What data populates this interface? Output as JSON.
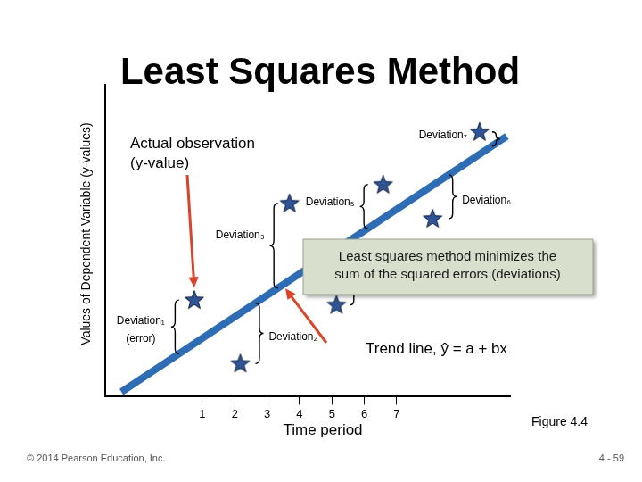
{
  "chart_data": {
    "type": "scatter",
    "title": "Least Squares Method",
    "x_label": "Time period",
    "y_label": "Values of Dependent Variable (y-values)",
    "xlim": [
      -2,
      10.5
    ],
    "ylim": [
      0,
      10
    ],
    "xticks": [
      1,
      2,
      3,
      4,
      5,
      6,
      7
    ],
    "tick_labels": "x",
    "grid": false,
    "series": [
      {
        "type": "line",
        "color": "#2e6db4",
        "line_style": "solid",
        "x": [
          -1.5,
          10.4
        ],
        "values": [
          0.15,
          8.35
        ]
      },
      {
        "type": "scatter",
        "color": "#2f5597",
        "marker": "star",
        "x": [
          0.75,
          2.17,
          3.69,
          5.14,
          6.58,
          8.11,
          9.56
        ],
        "values": [
          3.1,
          1.06,
          6.2,
          2.94,
          6.8,
          5.71,
          8.49
        ],
        "deviation_labels": [
          "Deviation₁\n(error)",
          "Deviation₂",
          "Deviation₃",
          null,
          "Deviation₅",
          "Deviation₆",
          "Deviation₇"
        ]
      }
    ],
    "annotations": {
      "observation": "Actual observation\n(y-value)",
      "callout": "Least squares method minimizes the\nsum of the squared errors (deviations)",
      "trend": "Trend line, ŷ = a + bx",
      "figure": "Figure 4.4",
      "copyright": "© 2014 Pearson Education, Inc.",
      "page": "4 - 59"
    }
  }
}
